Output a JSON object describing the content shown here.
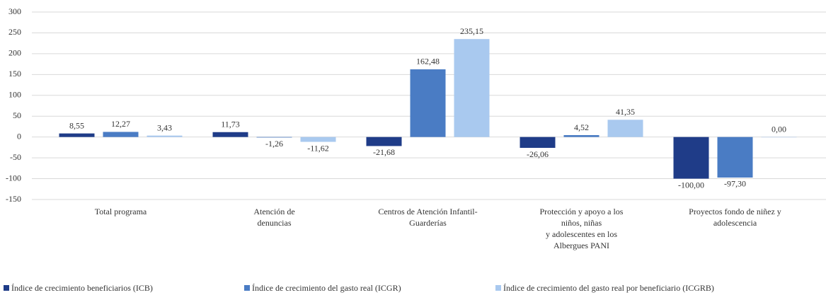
{
  "chart_data": {
    "type": "bar",
    "categories": [
      "Total programa",
      "Atención de\ndenuncias",
      "Centros de Atención Infantil-\nGuarderías",
      "Protección y apoyo a los\nniños, niñas\ny adolescentes en los\nAlbergues PANI",
      "Proyectos fondo de niñez y\nadolescencia"
    ],
    "series": [
      {
        "name": "Índice de crecimiento beneficiarios (ICB)",
        "color": "#1f3c88",
        "values": [
          8.55,
          11.73,
          -21.68,
          -26.06,
          -100.0
        ],
        "value_labels": [
          "8,55",
          "11,73",
          "-21,68",
          "-26,06",
          "-100,00"
        ]
      },
      {
        "name": "Índice de crecimiento del gasto real (ICGR)",
        "color": "#4a7cc4",
        "values": [
          12.27,
          -1.26,
          162.48,
          4.52,
          -97.3
        ],
        "value_labels": [
          "12,27",
          "-1,26",
          "162,48",
          "4,52",
          "-97,30"
        ]
      },
      {
        "name": "Índice de crecimiento del gasto real por beneficiario (ICGRB)",
        "color": "#a9c9ef",
        "values": [
          3.43,
          -11.62,
          235.15,
          41.35,
          0.0
        ],
        "value_labels": [
          "3,43",
          "-11,62",
          "235,15",
          "41,35",
          "0,00"
        ]
      }
    ],
    "ylim": [
      -150,
      300
    ],
    "yticks": [
      -150,
      -100,
      -50,
      0,
      50,
      100,
      150,
      200,
      250,
      300
    ],
    "grid": true,
    "legend": "bottom"
  }
}
